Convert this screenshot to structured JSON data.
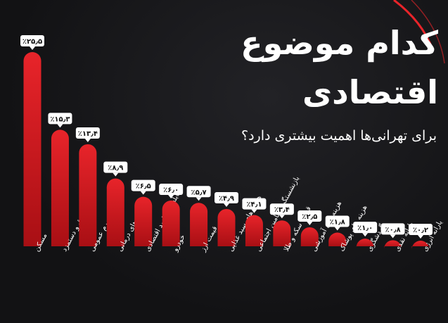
{
  "header": {
    "title_line1": "کدام موضوع",
    "title_line2": "اقتصادی",
    "subtitle": "برای تهرانی‌ها اهمیت بیشتری دارد؟"
  },
  "colors": {
    "bar": "#e8242a",
    "bar_dark": "#a80f14",
    "label_bg": "#ffffff",
    "label_text": "#111111",
    "category_text": "#ffffff",
    "background": "#141416"
  },
  "chart_data": {
    "type": "bar",
    "categories": [
      "مسکن",
      "حقوق و دستمزد",
      "تورم عمومی",
      "هزینه های درمانی",
      "مقابله با مفاسد اقتصادی",
      "خودرو",
      "قیمت ارز",
      "هزینه های سبد غذایی",
      "بازنشستگی و تامین اجتماعی",
      "قیمت سکه و طلا",
      "هزینه های آموزشی",
      "هزینه های پوشاک",
      "گردشگری",
      "یارانه نقدی",
      "یارانه انرژی"
    ],
    "values": [
      25.5,
      15.3,
      13.4,
      8.9,
      6.5,
      6.0,
      5.7,
      4.9,
      4.1,
      3.4,
      2.5,
      1.8,
      1.0,
      0.8,
      0.2
    ],
    "value_labels": [
      "٪۲۵٫۵",
      "٪۱۵٫۳",
      "٪۱۳٫۴",
      "٪۸٫۹",
      "٪۶٫۵",
      "٪۶٫۰",
      "٪۵٫۷",
      "٪۴٫۹",
      "٪۴٫۱",
      "٪۳٫۴",
      "٪۲٫۵",
      "٪۱٫۸",
      "٪۱٫۰",
      "٪۰٫۸",
      "٪۰٫۲"
    ],
    "title": "کدام موضوع اقتصادی",
    "xlabel": "",
    "ylabel": "",
    "grid": false,
    "legend": "none"
  }
}
